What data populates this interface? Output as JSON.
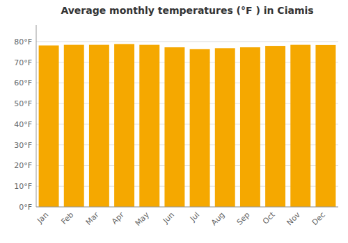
{
  "chart_data": {
    "type": "bar",
    "title": "Average monthly temperatures (°F ) in Ciamis",
    "categories": [
      "Jan",
      "Feb",
      "Mar",
      "Apr",
      "May",
      "Jun",
      "Jul",
      "Aug",
      "Sep",
      "Oct",
      "Nov",
      "Dec"
    ],
    "values": [
      78.1,
      78.4,
      78.4,
      78.8,
      78.4,
      77.2,
      76.3,
      76.8,
      77.2,
      77.9,
      78.4,
      78.3
    ],
    "color": "#F5A800",
    "ylim": [
      0,
      88
    ],
    "yticks": [
      {
        "value": 0,
        "label": "0°F"
      },
      {
        "value": 10,
        "label": "10°F"
      },
      {
        "value": 20,
        "label": "20°F"
      },
      {
        "value": 30,
        "label": "30°F"
      },
      {
        "value": 40,
        "label": "40°F"
      },
      {
        "value": 50,
        "label": "50°F"
      },
      {
        "value": 60,
        "label": "60°F"
      },
      {
        "value": 70,
        "label": "70°F"
      },
      {
        "value": 80,
        "label": "80°F"
      }
    ],
    "grid": true
  }
}
